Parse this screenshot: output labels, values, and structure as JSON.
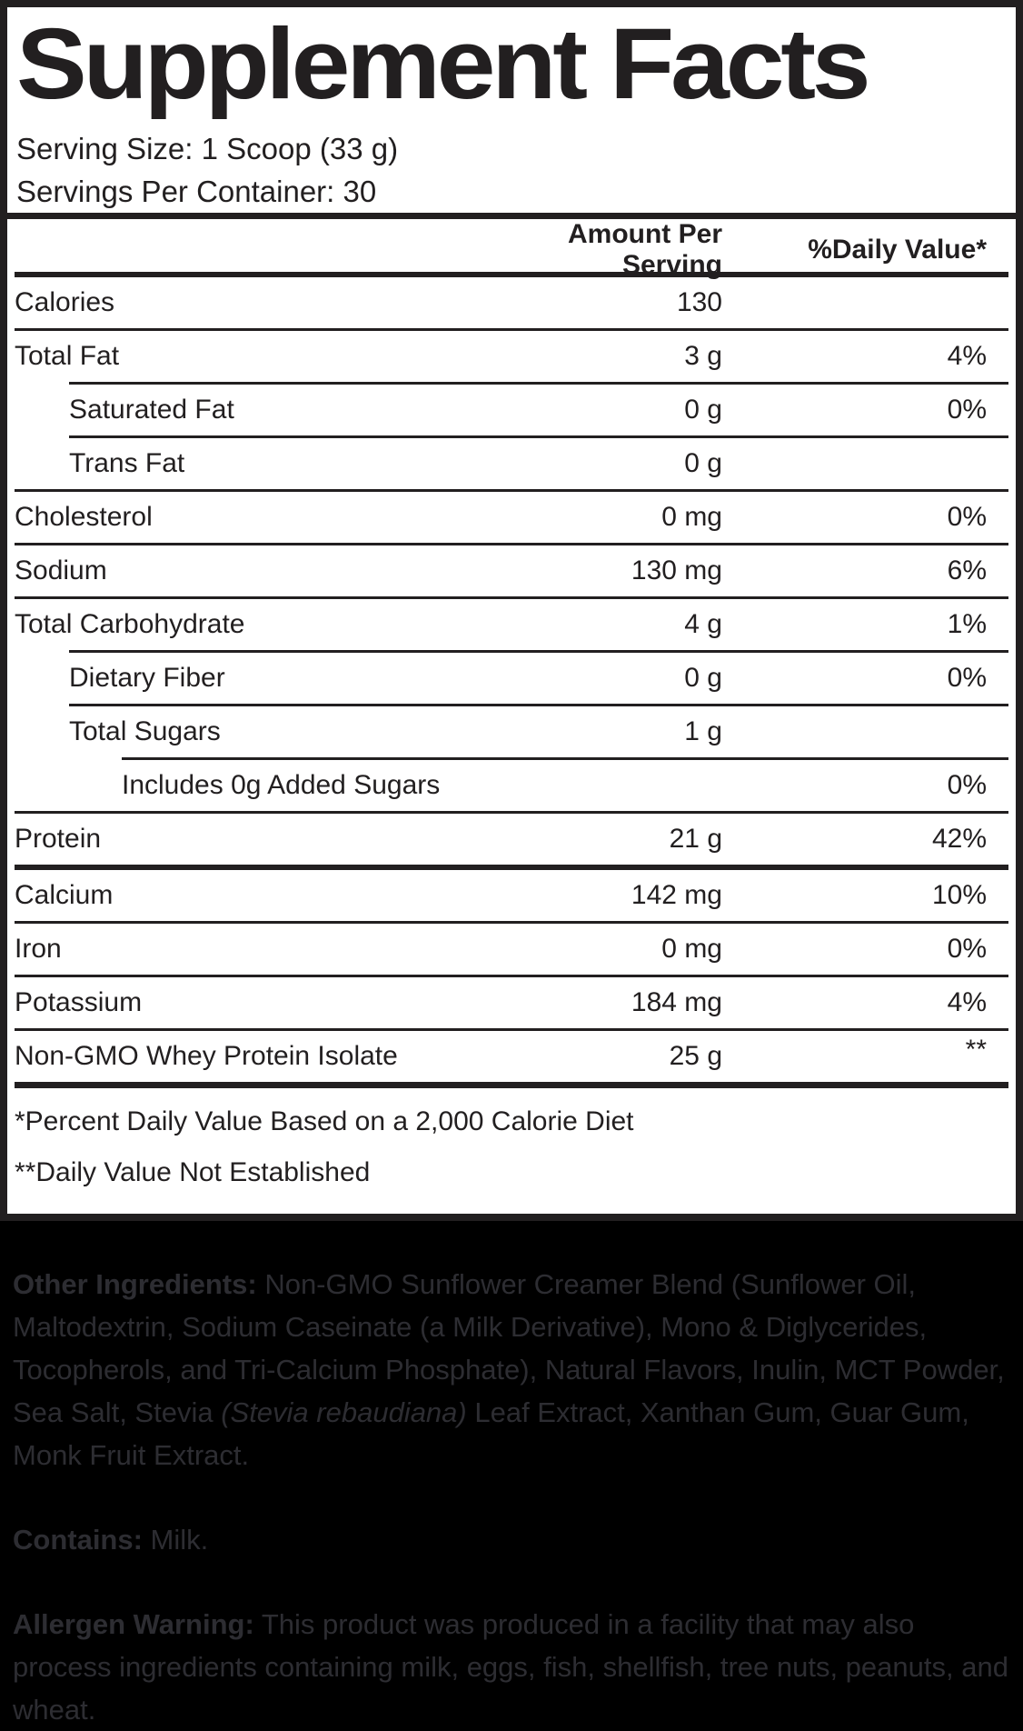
{
  "label": {
    "title": "Supplement Facts",
    "serving_size": "Serving Size: 1 Scoop (33 g)",
    "servings_per_container": "Servings Per Container: 30",
    "table": {
      "amount_header": "Amount Per Serving",
      "dv_header": "%Daily Value*",
      "rows": [
        {
          "label": "Calories",
          "amount": "130",
          "dv": "",
          "indent": 0,
          "rule": "none",
          "rule_indent": 0
        },
        {
          "label": "Total Fat",
          "amount": "3 g",
          "dv": "4%",
          "indent": 0,
          "rule": "thin",
          "rule_indent": 0
        },
        {
          "label": "Saturated Fat",
          "amount": "0 g",
          "dv": "0%",
          "indent": 1,
          "rule": "thin",
          "rule_indent": 1
        },
        {
          "label": "Trans Fat",
          "amount": "0 g",
          "dv": "",
          "indent": 1,
          "rule": "thin",
          "rule_indent": 1
        },
        {
          "label": "Cholesterol",
          "amount": "0 mg",
          "dv": "0%",
          "indent": 0,
          "rule": "thin",
          "rule_indent": 0
        },
        {
          "label": "Sodium",
          "amount": "130 mg",
          "dv": "6%",
          "indent": 0,
          "rule": "thin",
          "rule_indent": 0
        },
        {
          "label": "Total Carbohydrate",
          "amount": "4 g",
          "dv": "1%",
          "indent": 0,
          "rule": "thin",
          "rule_indent": 0
        },
        {
          "label": "Dietary Fiber",
          "amount": "0 g",
          "dv": "0%",
          "indent": 1,
          "rule": "thin",
          "rule_indent": 1
        },
        {
          "label": "Total Sugars",
          "amount": "1 g",
          "dv": "",
          "indent": 1,
          "rule": "thin",
          "rule_indent": 1
        },
        {
          "label": "Includes 0g Added Sugars",
          "amount": "",
          "dv": "0%",
          "indent": 2,
          "rule": "thin",
          "rule_indent": 2
        },
        {
          "label": "Protein",
          "amount": "21 g",
          "dv": "42%",
          "indent": 0,
          "rule": "thin",
          "rule_indent": 0
        },
        {
          "label": "Calcium",
          "amount": "142 mg",
          "dv": "10%",
          "indent": 0,
          "rule": "thick",
          "rule_indent": 0
        },
        {
          "label": "Iron",
          "amount": "0 mg",
          "dv": "0%",
          "indent": 0,
          "rule": "thin",
          "rule_indent": 0
        },
        {
          "label": "Potassium",
          "amount": "184 mg",
          "dv": "4%",
          "indent": 0,
          "rule": "thin",
          "rule_indent": 0
        },
        {
          "label": "Non-GMO Whey Protein Isolate",
          "amount": "25 g",
          "dv": "**",
          "dv_super": true,
          "indent": 0,
          "rule": "thin",
          "rule_indent": 0
        }
      ]
    },
    "footnote_dv": "*Percent Daily Value Based on a 2,000 Calorie Diet",
    "footnote_not_established": "**Daily Value Not Established"
  },
  "ingredients": {
    "other_label": "Other Ingredients:",
    "other_before_italic": " Non-GMO Sunflower Creamer Blend (Sunflower Oil, Maltodextrin, Sodium Caseinate (a Milk Derivative), Mono & Diglycerides, Tocopherols, and Tri-Calcium Phosphate), Natural Flavors, Inulin, MCT Powder, Sea Salt, Stevia ",
    "other_italic": "(Stevia rebaudiana)",
    "other_after_italic": " Leaf Extract, Xanthan Gum, Guar Gum, Monk Fruit Extract.",
    "contains_label": "Contains:",
    "contains_text": " Milk.",
    "allergen_label": "Allergen Warning:",
    "allergen_text": " This product was produced in a facility that may also process ingredients containing milk, eggs, fish, shellfish, tree nuts, peanuts, and wheat."
  },
  "colors": {
    "label_text": "#221f20",
    "label_bg": "#ffffff",
    "page_bg": "#000000",
    "ingredients_text": "#2d2d32"
  }
}
